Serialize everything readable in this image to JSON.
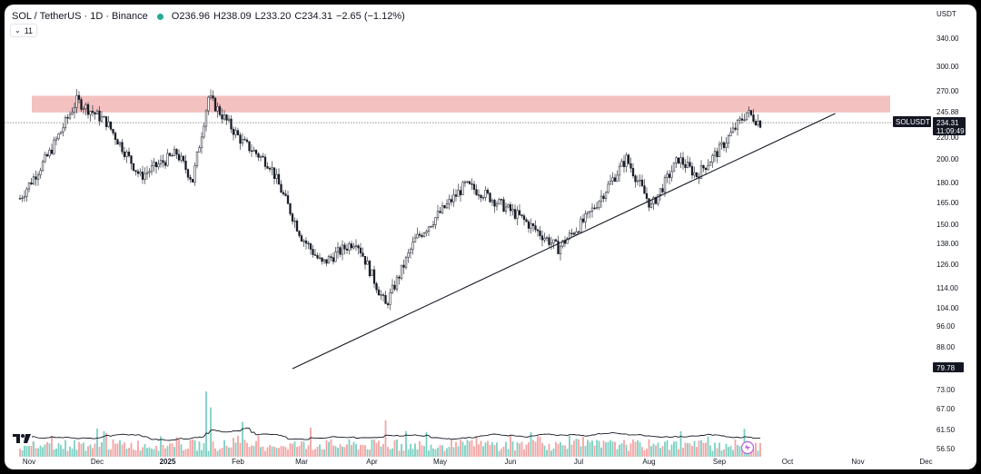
{
  "header": {
    "symbol_title": "SOL / TetherUS · 1D · Binance",
    "open": "O236.96",
    "high": "H238.09",
    "low": "L233.20",
    "close": "C234.31",
    "change": "−2.65 (−1.12%)",
    "indicator_count": "11",
    "currency_label": "USDT"
  },
  "price_axis": {
    "ticks": [
      "340.00",
      "300.00",
      "270.00",
      "245.00",
      "220.00",
      "200.00",
      "180.00",
      "165.00",
      "150.00",
      "138.00",
      "126.00",
      "114.00",
      "104.00",
      "96.00",
      "88.00",
      "79.78",
      "73.00",
      "67.00",
      "61.50",
      "56.50"
    ],
    "last_price_label": "245.88",
    "current_price": "234.31",
    "countdown": "11:09:49",
    "symbol_tag": "SOLUSDT",
    "level_label": "79.78"
  },
  "time_axis": {
    "labels": [
      "Nov",
      "Dec",
      "2025",
      "Feb",
      "Mar",
      "Apr",
      "May",
      "Jun",
      "Jul",
      "Aug",
      "Sep",
      "Oct",
      "Nov",
      "Dec"
    ]
  },
  "annotations": {
    "resistance_zone": {
      "low": 245,
      "high": 270
    },
    "trendline": {
      "from_date": "2025-02-25",
      "from_price": 79.78,
      "to_date": "2025-10-22",
      "to_price": 245
    }
  },
  "colors": {
    "up": "#26a69a",
    "down": "#ef5350",
    "candle": "#131722",
    "zone": "#f4c1c1",
    "volume_up": "#7ccfc3",
    "volume_down": "#f4a3a3"
  },
  "icons": {
    "tv_logo": "tradingview-logo-icon",
    "replay": "replay-icon"
  },
  "chart_data": {
    "type": "candlestick",
    "x_range": [
      "2024-10-28",
      "2025-12-31"
    ],
    "price_range": [
      56.5,
      340
    ],
    "scale": "log",
    "price_anchors": [
      {
        "date": "2024-10-28",
        "price": 168
      },
      {
        "date": "2024-11-10",
        "price": 205
      },
      {
        "date": "2024-11-22",
        "price": 258
      },
      {
        "date": "2024-12-05",
        "price": 235
      },
      {
        "date": "2024-12-20",
        "price": 185
      },
      {
        "date": "2025-01-05",
        "price": 205
      },
      {
        "date": "2025-01-12",
        "price": 182
      },
      {
        "date": "2025-01-19",
        "price": 262
      },
      {
        "date": "2025-02-03",
        "price": 215
      },
      {
        "date": "2025-02-15",
        "price": 195
      },
      {
        "date": "2025-03-01",
        "price": 142
      },
      {
        "date": "2025-03-10",
        "price": 126
      },
      {
        "date": "2025-03-25",
        "price": 140
      },
      {
        "date": "2025-04-07",
        "price": 105
      },
      {
        "date": "2025-04-20",
        "price": 140
      },
      {
        "date": "2025-05-12",
        "price": 178
      },
      {
        "date": "2025-05-20",
        "price": 172
      },
      {
        "date": "2025-06-05",
        "price": 155
      },
      {
        "date": "2025-06-22",
        "price": 135
      },
      {
        "date": "2025-07-05",
        "price": 155
      },
      {
        "date": "2025-07-22",
        "price": 200
      },
      {
        "date": "2025-08-02",
        "price": 162
      },
      {
        "date": "2025-08-14",
        "price": 200
      },
      {
        "date": "2025-08-22",
        "price": 186
      },
      {
        "date": "2025-09-01",
        "price": 208
      },
      {
        "date": "2025-09-13",
        "price": 245
      },
      {
        "date": "2025-09-19",
        "price": 234
      }
    ],
    "volume_spikes": [
      {
        "date": "2025-01-18",
        "value": 9.0
      },
      {
        "date": "2025-01-20",
        "value": 6.8
      },
      {
        "date": "2025-02-03",
        "value": 4.8
      },
      {
        "date": "2025-04-07",
        "value": 5.0
      },
      {
        "date": "2025-03-05",
        "value": 4.0
      }
    ]
  }
}
